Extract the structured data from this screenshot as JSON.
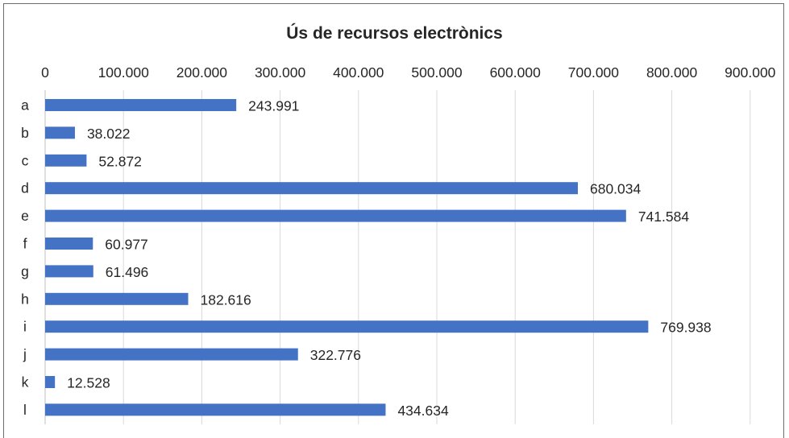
{
  "chart_data": {
    "type": "bar",
    "orientation": "horizontal",
    "title": "Ús de recursos electrònics",
    "xlabel": "",
    "ylabel": "",
    "xlim": [
      0,
      900000
    ],
    "x_tick_values": [
      0,
      100000,
      200000,
      300000,
      400000,
      500000,
      600000,
      700000,
      800000,
      900000
    ],
    "x_tick_labels": [
      "0",
      "100.000",
      "200.000",
      "300.000",
      "400.000",
      "500.000",
      "600.000",
      "700.000",
      "800.000",
      "900.000"
    ],
    "x_axis_position": "top",
    "grid": "vertical",
    "legend": "none",
    "bar_color": "#4472C4",
    "categories": [
      "a",
      "b",
      "c",
      "d",
      "e",
      "f",
      "g",
      "h",
      "i",
      "j",
      "k",
      "l"
    ],
    "values": [
      243991,
      38022,
      52872,
      680034,
      741584,
      60977,
      61496,
      182616,
      769938,
      322776,
      12528,
      434634
    ],
    "data_labels": [
      "243.991",
      "38.022",
      "52.872",
      "680.034",
      "741.584",
      "60.977",
      "61.496",
      "182.616",
      "769.938",
      "322.776",
      "12.528",
      "434.634"
    ]
  }
}
